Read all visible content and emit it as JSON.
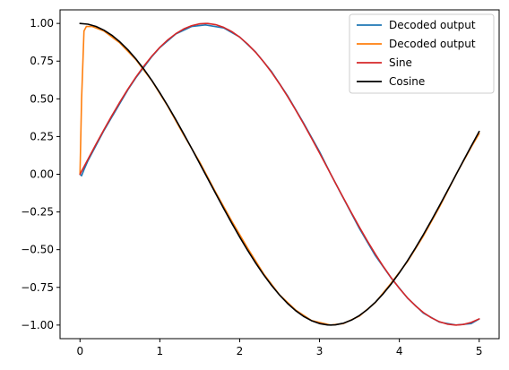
{
  "chart_data": {
    "type": "line",
    "title": "",
    "xlabel": "",
    "ylabel": "",
    "xlim": [
      -0.25,
      5.25
    ],
    "ylim": [
      -1.09,
      1.09
    ],
    "grid": false,
    "legend_position": "top-right",
    "x_ticks": [
      0,
      1,
      2,
      3,
      4,
      5
    ],
    "x_tick_labels": [
      "0",
      "1",
      "2",
      "3",
      "4",
      "5"
    ],
    "y_ticks": [
      -1.0,
      -0.75,
      -0.5,
      -0.25,
      0.0,
      0.25,
      0.5,
      0.75,
      1.0
    ],
    "y_tick_labels": [
      "−1.00",
      "−0.75",
      "−0.50",
      "−0.25",
      "0.00",
      "0.25",
      "0.50",
      "0.75",
      "1.00"
    ],
    "series": [
      {
        "name": "Decoded output",
        "color": "#1f77b4",
        "x": [
          0,
          0.02,
          0.05,
          0.1,
          0.2,
          0.3,
          0.4,
          0.5,
          0.6,
          0.7,
          0.8,
          0.9,
          1.0,
          1.2,
          1.4,
          1.5708,
          1.8,
          2.0,
          2.2,
          2.4,
          2.6,
          2.8,
          3.0,
          3.1416,
          3.3,
          3.5,
          3.7,
          3.9,
          4.1,
          4.3,
          4.5,
          4.7124,
          4.9,
          5.0
        ],
        "y": [
          0.0,
          -0.01,
          0.03,
          0.09,
          0.19,
          0.29,
          0.38,
          0.47,
          0.56,
          0.64,
          0.71,
          0.78,
          0.84,
          0.93,
          0.98,
          0.99,
          0.97,
          0.91,
          0.81,
          0.68,
          0.52,
          0.34,
          0.15,
          0.0,
          -0.16,
          -0.36,
          -0.54,
          -0.69,
          -0.82,
          -0.92,
          -0.98,
          -1.0,
          -0.99,
          -0.96
        ]
      },
      {
        "name": "Decoded output",
        "color": "#ff7f0e",
        "x": [
          0,
          0.02,
          0.05,
          0.08,
          0.15,
          0.3,
          0.5,
          0.7,
          0.9,
          1.1,
          1.3,
          1.5,
          1.7,
          1.9,
          2.1,
          2.3,
          2.5,
          2.7,
          2.9,
          3.1416,
          3.3,
          3.5,
          3.7,
          3.9,
          4.1,
          4.3,
          4.5,
          4.7124,
          4.9,
          5.0
        ],
        "y": [
          0.0,
          0.5,
          0.95,
          0.98,
          0.98,
          0.95,
          0.87,
          0.76,
          0.62,
          0.45,
          0.26,
          0.08,
          -0.12,
          -0.31,
          -0.49,
          -0.66,
          -0.8,
          -0.9,
          -0.97,
          -1.0,
          -0.99,
          -0.94,
          -0.85,
          -0.72,
          -0.58,
          -0.41,
          -0.22,
          0.0,
          0.18,
          0.27
        ]
      },
      {
        "name": "Sine",
        "color": "#d62728",
        "x": [
          0,
          0.1,
          0.2,
          0.3,
          0.4,
          0.5,
          0.6,
          0.7,
          0.8,
          0.9,
          1.0,
          1.1,
          1.2,
          1.3,
          1.4,
          1.5,
          1.5708,
          1.6,
          1.7,
          1.8,
          1.9,
          2.0,
          2.1,
          2.2,
          2.3,
          2.4,
          2.5,
          2.6,
          2.7,
          2.8,
          2.9,
          3.0,
          3.1,
          3.1416,
          3.2,
          3.3,
          3.4,
          3.5,
          3.6,
          3.7,
          3.8,
          3.9,
          4.0,
          4.1,
          4.2,
          4.3,
          4.4,
          4.5,
          4.6,
          4.7,
          4.7124,
          4.8,
          4.9,
          5.0
        ],
        "y": [
          0.0,
          0.0998,
          0.1987,
          0.2955,
          0.3894,
          0.4794,
          0.5646,
          0.6442,
          0.7174,
          0.7833,
          0.8415,
          0.8912,
          0.932,
          0.9636,
          0.9854,
          0.9975,
          1.0,
          0.9996,
          0.9917,
          0.9738,
          0.9463,
          0.9093,
          0.8632,
          0.8085,
          0.7457,
          0.6755,
          0.5985,
          0.5155,
          0.4274,
          0.335,
          0.2392,
          0.1411,
          0.0416,
          0.0,
          -0.0584,
          -0.1577,
          -0.2555,
          -0.3508,
          -0.4425,
          -0.5298,
          -0.6119,
          -0.6878,
          -0.7568,
          -0.8183,
          -0.8716,
          -0.9162,
          -0.9516,
          -0.9775,
          -0.9937,
          -0.9999,
          -1.0,
          -0.9962,
          -0.9825,
          -0.9589
        ]
      },
      {
        "name": "Cosine",
        "color": "#000000",
        "x": [
          0,
          0.1,
          0.2,
          0.3,
          0.4,
          0.5,
          0.6,
          0.7,
          0.8,
          0.9,
          1.0,
          1.1,
          1.2,
          1.3,
          1.4,
          1.5,
          1.5708,
          1.6,
          1.7,
          1.8,
          1.9,
          2.0,
          2.1,
          2.2,
          2.3,
          2.4,
          2.5,
          2.6,
          2.7,
          2.8,
          2.9,
          3.0,
          3.1,
          3.1416,
          3.2,
          3.3,
          3.4,
          3.5,
          3.6,
          3.7,
          3.8,
          3.9,
          4.0,
          4.1,
          4.2,
          4.3,
          4.4,
          4.5,
          4.6,
          4.7,
          4.7124,
          4.8,
          4.9,
          5.0
        ],
        "y": [
          1.0,
          0.995,
          0.9801,
          0.9553,
          0.9211,
          0.8776,
          0.8253,
          0.7648,
          0.6967,
          0.6216,
          0.5403,
          0.4536,
          0.3624,
          0.2675,
          0.17,
          0.0707,
          0.0,
          -0.0292,
          -0.1288,
          -0.2272,
          -0.3233,
          -0.4161,
          -0.5048,
          -0.5885,
          -0.6663,
          -0.7374,
          -0.8011,
          -0.8569,
          -0.904,
          -0.9422,
          -0.971,
          -0.99,
          -0.9991,
          -1.0,
          -0.9983,
          -0.9875,
          -0.9668,
          -0.9365,
          -0.8968,
          -0.8481,
          -0.791,
          -0.7259,
          -0.6536,
          -0.5748,
          -0.4903,
          -0.4008,
          -0.3073,
          -0.2108,
          -0.1122,
          -0.0124,
          0.0,
          0.0875,
          0.1865,
          0.2837
        ]
      }
    ]
  }
}
